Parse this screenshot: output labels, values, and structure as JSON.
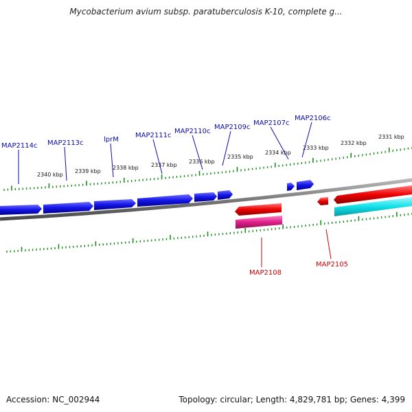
{
  "title": "Mycobacterium avium subsp. paratuberculosis K-10, complete g...",
  "footer": {
    "accession": "Accession: NC_002944",
    "summary": "Topology: circular; Length: 4,829,781 bp; Genes: 4,399"
  },
  "colors": {
    "forward_gene": "#1010e0",
    "reverse_gene": "#e00000",
    "magenta_feature": "#e0208a",
    "cyan_feature": "#10e0e8",
    "backbone": "#888888",
    "ruler": "#1a8a1a",
    "forward_label": "#0a0aa8",
    "reverse_label": "#cc0000"
  },
  "ruler_labels": [
    "2340 kbp",
    "2339 kbp",
    "2338 kbp",
    "2337 kbp",
    "2336 kbp",
    "2335 kbp",
    "2334 kbp",
    "2333 kbp",
    "2332 kbp",
    "2331 kbp"
  ],
  "forward_genes": [
    "MAP2114c",
    "MAP2113c",
    "lprM",
    "MAP2111c",
    "MAP2110c",
    "MAP2109c",
    "MAP2107c",
    "MAP2106c"
  ],
  "reverse_genes": [
    "MAP2108",
    "MAP2105"
  ]
}
